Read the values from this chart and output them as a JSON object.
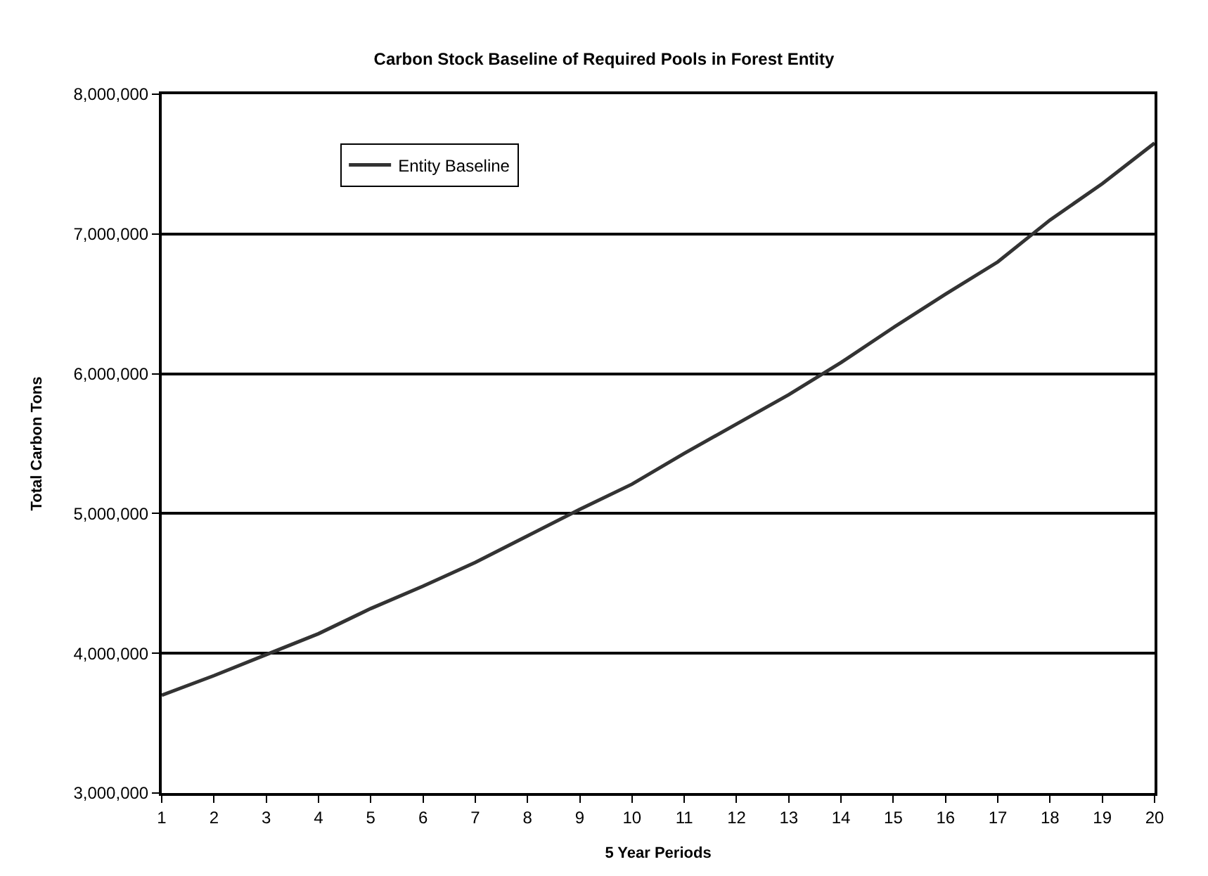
{
  "chart_data": {
    "type": "line",
    "title": "Carbon Stock Baseline of Required Pools in Forest Entity",
    "xlabel": "5 Year Periods",
    "ylabel": "Total Carbon Tons",
    "x": [
      1,
      2,
      3,
      4,
      5,
      6,
      7,
      8,
      9,
      10,
      11,
      12,
      13,
      14,
      15,
      16,
      17,
      18,
      19,
      20
    ],
    "series": [
      {
        "name": "Entity Baseline",
        "color": "#333333",
        "values": [
          3700000,
          3840000,
          3990000,
          4140000,
          4320000,
          4480000,
          4650000,
          4840000,
          5030000,
          5210000,
          5430000,
          5640000,
          5850000,
          6080000,
          6330000,
          6570000,
          6800000,
          7100000,
          7360000,
          7650000
        ]
      }
    ],
    "xlim": [
      1,
      20
    ],
    "xticks": [
      1,
      2,
      3,
      4,
      5,
      6,
      7,
      8,
      9,
      10,
      11,
      12,
      13,
      14,
      15,
      16,
      17,
      18,
      19,
      20
    ],
    "ylim": [
      3000000,
      8000000
    ],
    "yticks": [
      {
        "value": 3000000,
        "label": "3,000,000"
      },
      {
        "value": 4000000,
        "label": "4,000,000"
      },
      {
        "value": 5000000,
        "label": "5,000,000"
      },
      {
        "value": 6000000,
        "label": "6,000,000"
      },
      {
        "value": 7000000,
        "label": "7,000,000"
      },
      {
        "value": 8000000,
        "label": "8,000,000"
      }
    ],
    "grid": "y",
    "legend": "top left",
    "marker": "none",
    "line_style": "solid"
  }
}
